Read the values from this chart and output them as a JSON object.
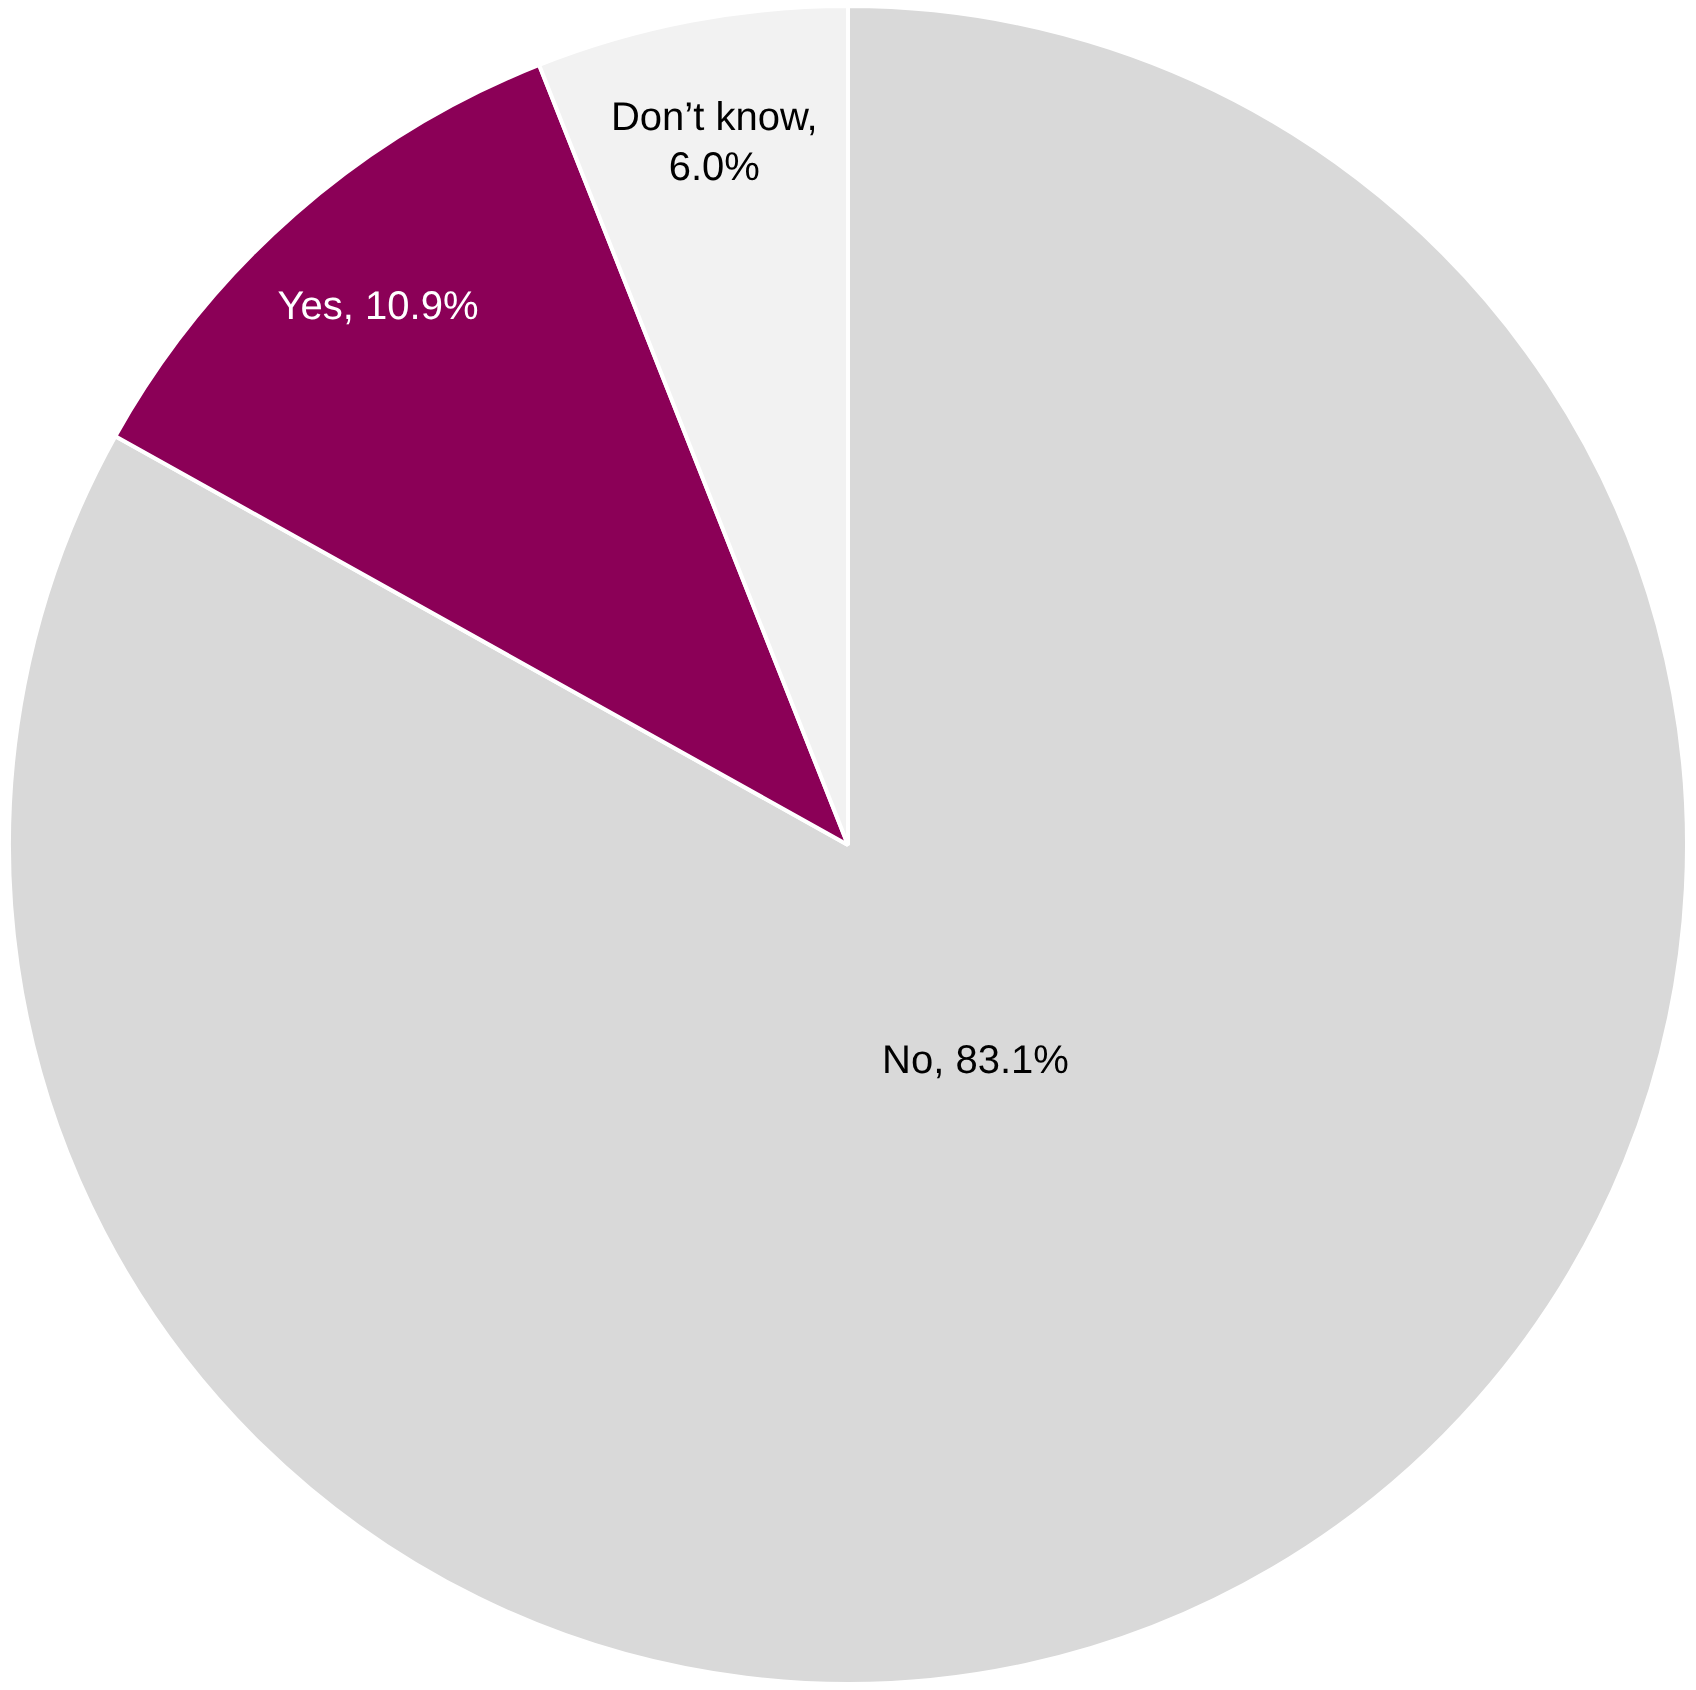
{
  "chart_data": {
    "type": "pie",
    "categories": [
      "No",
      "Yes",
      "Don’t know"
    ],
    "values": [
      83.1,
      10.9,
      6.0
    ],
    "colors": [
      "#d9d9d9",
      "#8b0057",
      "#f2f2f2"
    ],
    "value_labels": [
      ", 83.1%",
      ", 10.9%",
      ", 6.0%"
    ],
    "legend": false
  }
}
